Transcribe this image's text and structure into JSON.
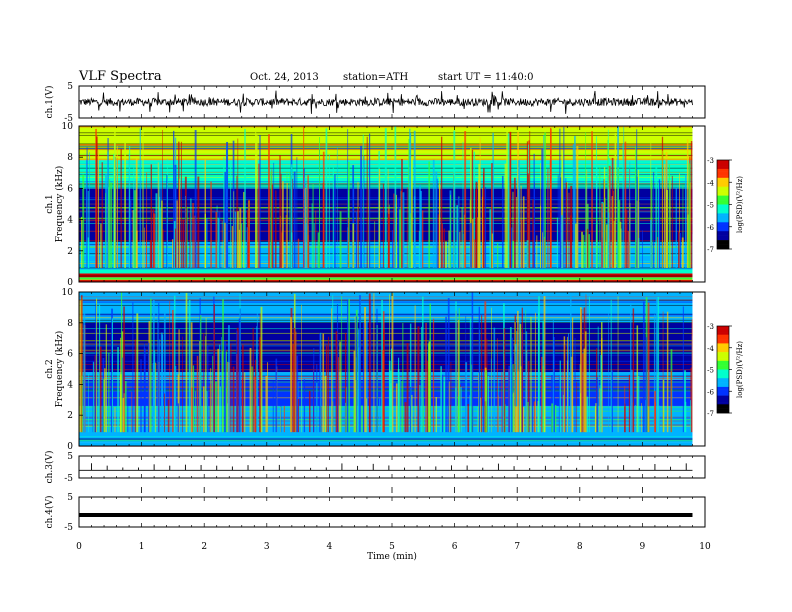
{
  "header": {
    "title": "VLF Spectra",
    "date": "Oct. 24, 2013",
    "station": "station=ATH",
    "start": "start UT =  11:40:0"
  },
  "colors": {
    "colormap": [
      "#000000",
      "#0000a0",
      "#0033ff",
      "#00b3ff",
      "#00ffcc",
      "#33ff33",
      "#ccff00",
      "#ffcc00",
      "#ff3300",
      "#cc0000",
      "#ffffff"
    ]
  },
  "chart_data": [
    {
      "type": "line",
      "ylabel": "ch.1(V)",
      "ylim": [
        -5,
        5
      ],
      "yticks": [
        "5",
        "-5"
      ],
      "xlim": [
        0,
        10
      ],
      "signal": {
        "baseline": 0,
        "noise_amplitude": 1.2,
        "spike_amplitude": 2.5
      }
    },
    {
      "type": "heatmap",
      "ylabel_lines": [
        "ch.1",
        "Frequency (kHz)"
      ],
      "ylim": [
        0,
        10
      ],
      "yticks": [
        "0",
        "2",
        "4",
        "6",
        "8",
        "10"
      ],
      "xlim": [
        0,
        10
      ],
      "data_end_min": 9.8,
      "colorbar": {
        "label": "log(PSD)(V²/Hz)",
        "range": [
          -7,
          -3
        ],
        "ticks": [
          "-3",
          "-4",
          "-5",
          "-6",
          "-7"
        ]
      },
      "bands_khz": [
        {
          "from": 0.0,
          "to": 0.15,
          "level": -3.4
        },
        {
          "from": 0.15,
          "to": 0.3,
          "level": -4.8
        },
        {
          "from": 0.3,
          "to": 0.55,
          "level": -3.2
        },
        {
          "from": 0.55,
          "to": 0.8,
          "level": -5.3
        },
        {
          "from": 0.8,
          "to": 2.6,
          "level": -5.5
        },
        {
          "from": 2.6,
          "to": 6.0,
          "level": -6.4
        },
        {
          "from": 6.0,
          "to": 6.2,
          "level": -5.3
        },
        {
          "from": 6.2,
          "to": 7.8,
          "level": -5.1
        },
        {
          "from": 7.8,
          "to": 10.0,
          "level": -4.6
        }
      ]
    },
    {
      "type": "heatmap",
      "ylabel_lines": [
        "ch.2",
        "Frequency (kHz)"
      ],
      "ylim": [
        0,
        10
      ],
      "yticks": [
        "0",
        "2",
        "4",
        "6",
        "8",
        "10"
      ],
      "xlim": [
        0,
        10
      ],
      "data_end_min": 9.8,
      "colorbar": {
        "label": "log(PSD)(V²/Hz)",
        "range": [
          -7,
          -3
        ],
        "ticks": [
          "-3",
          "-4",
          "-5",
          "-6",
          "-7"
        ]
      },
      "bands_khz": [
        {
          "from": 0.0,
          "to": 0.2,
          "level": -5.4
        },
        {
          "from": 0.2,
          "to": 2.6,
          "level": -5.6
        },
        {
          "from": 2.6,
          "to": 4.3,
          "level": -5.9
        },
        {
          "from": 4.3,
          "to": 4.8,
          "level": -5.8
        },
        {
          "from": 4.8,
          "to": 6.8,
          "level": -6.5
        },
        {
          "from": 6.8,
          "to": 8.0,
          "level": -6.2
        },
        {
          "from": 8.0,
          "to": 10.0,
          "level": -5.6
        }
      ]
    },
    {
      "type": "line",
      "ylabel": "ch.3(V)",
      "ylim": [
        -5,
        5
      ],
      "yticks": [
        "5",
        "-5"
      ],
      "xlim": [
        0,
        10
      ],
      "signal": {
        "baseline": -1.5,
        "pulse_interval_min": 0.25,
        "pulse_height": 2.5
      }
    },
    {
      "type": "line",
      "ylabel": "ch.4(V)",
      "ylim": [
        -5,
        5
      ],
      "yticks": [
        "5",
        "-5"
      ],
      "xlim": [
        0,
        10
      ],
      "signal": {
        "baseline": -1.0,
        "noise_amplitude": 0.2
      }
    }
  ],
  "xaxis": {
    "label": "Time (min)",
    "ticks": [
      "0",
      "1",
      "2",
      "3",
      "4",
      "5",
      "6",
      "7",
      "8",
      "9",
      "10"
    ]
  }
}
